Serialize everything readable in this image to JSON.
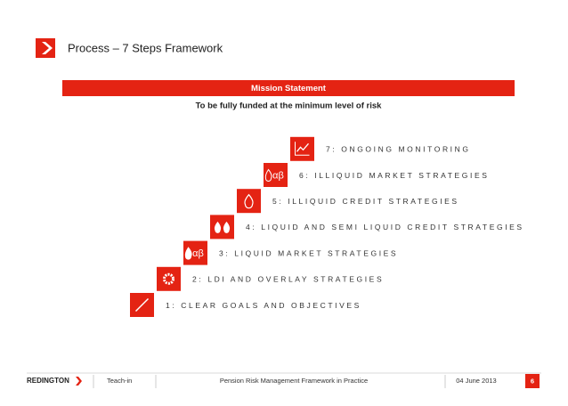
{
  "header": {
    "title": "Process – 7 Steps Framework"
  },
  "mission": {
    "title": "Mission Statement",
    "text": "To be fully funded at the minimum level of risk"
  },
  "steps": [
    {
      "label": "1: CLEAR GOALS AND OBJECTIVES"
    },
    {
      "label": "2: LDI AND OVERLAY STRATEGIES"
    },
    {
      "label": "3: LIQUID MARKET STRATEGIES",
      "icon_text": "αβ"
    },
    {
      "label": "4: LIQUID AND SEMI LIQUID CREDIT STRATEGIES"
    },
    {
      "label": "5: ILLIQUID CREDIT STRATEGIES"
    },
    {
      "label": "6: ILLIQUID MARKET STRATEGIES",
      "icon_text": "αβ"
    },
    {
      "label": "7: ONGOING MONITORING"
    }
  ],
  "footer": {
    "logo": "REDINGTON",
    "left": "Teach-in",
    "center": "Pension Risk Management Framework in Practice",
    "date": "04 June 2013",
    "page": "6"
  }
}
